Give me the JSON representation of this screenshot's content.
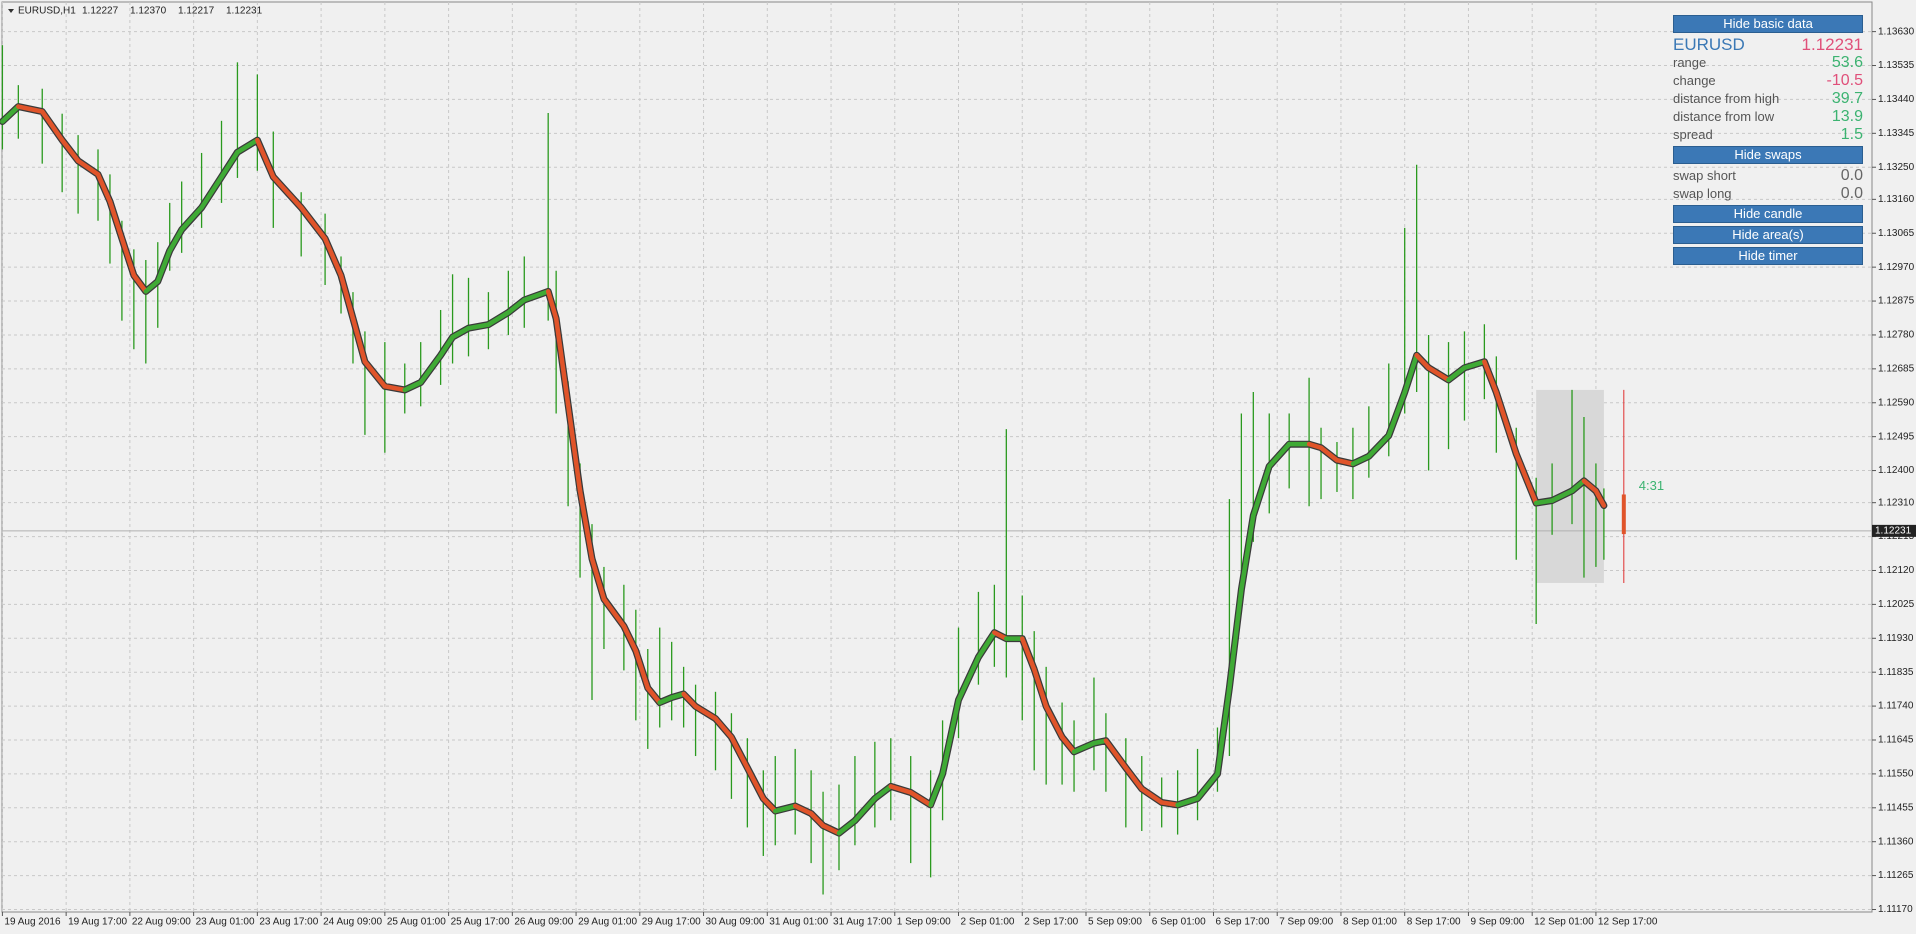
{
  "chart_data": {
    "type": "ohlc",
    "title": "EURUSD,H1",
    "header_values": [
      "1.12227",
      "1.12370",
      "1.12217",
      "1.12231"
    ],
    "x": [
      0,
      4,
      10,
      15,
      19,
      24,
      27,
      30,
      33,
      36,
      39,
      42,
      45,
      50,
      55,
      59,
      64,
      68,
      75,
      81,
      85,
      88,
      91,
      96,
      101,
      105,
      110,
      113,
      117,
      122,
      127,
      131,
      137,
      139,
      142,
      145,
      148,
      151,
      156,
      159,
      162,
      165,
      168,
      171,
      174,
      179,
      183,
      187,
      191,
      194,
      199,
      203,
      206,
      210,
      214,
      219,
      223,
      228,
      233,
      236,
      240,
      245,
      249,
      252,
      256,
      259,
      262,
      266,
      269,
      274,
      277,
      282,
      286,
      291,
      295,
      300,
      305,
      308,
      311,
      314,
      318,
      323,
      328,
      331,
      335,
      339,
      343,
      348,
      352,
      355,
      358,
      363,
      367,
      372,
      375,
      380,
      385,
      389,
      394,
      397,
      400,
      402
    ],
    "ma": [
      1.13378,
      1.1342,
      1.13406,
      1.13326,
      1.13268,
      1.1323,
      1.13154,
      1.1305,
      1.12947,
      1.12902,
      1.1293,
      1.13016,
      1.13075,
      1.13137,
      1.13223,
      1.13292,
      1.13326,
      1.13223,
      1.13137,
      1.1305,
      1.12947,
      1.12826,
      1.12705,
      1.12636,
      1.12626,
      1.12647,
      1.12723,
      1.12774,
      1.12799,
      1.12809,
      1.12843,
      1.12878,
      1.12902,
      1.12826,
      1.12585,
      1.12343,
      1.12153,
      1.1204,
      1.11964,
      1.11895,
      1.11791,
      1.1175,
      1.11764,
      1.11774,
      1.11739,
      1.11705,
      1.11653,
      1.11567,
      1.11481,
      1.11446,
      1.1146,
      1.11439,
      1.11405,
      1.11384,
      1.11419,
      1.11481,
      1.11515,
      1.11498,
      1.11463,
      1.1155,
      1.11757,
      1.11877,
      1.11946,
      1.11929,
      1.11929,
      1.11843,
      1.11739,
      1.11653,
      1.11612,
      1.11636,
      1.11643,
      1.11567,
      1.11508,
      1.1147,
      1.11463,
      1.11481,
      1.1155,
      1.11791,
      1.12067,
      1.12274,
      1.12412,
      1.12474,
      1.12474,
      1.12464,
      1.12429,
      1.12419,
      1.1244,
      1.12498,
      1.12619,
      1.12723,
      1.12688,
      1.12654,
      1.12688,
      1.12705,
      1.12619,
      1.12447,
      1.12309,
      1.12316,
      1.12343,
      1.12371,
      1.12343,
      1.12302
    ],
    "high": [
      1.13592,
      1.1348,
      1.1347,
      1.134,
      1.1334,
      1.133,
      1.1323,
      1.131,
      1.1302,
      1.1299,
      1.1304,
      1.1315,
      1.1321,
      1.1329,
      1.1338,
      1.13544,
      1.1351,
      1.1335,
      1.1318,
      1.1312,
      1.13,
      1.129,
      1.1279,
      1.1276,
      1.127,
      1.1276,
      1.1285,
      1.1295,
      1.1294,
      1.129,
      1.1296,
      1.13,
      1.13402,
      1.1296,
      1.1265,
      1.1242,
      1.1225,
      1.1213,
      1.1208,
      1.1201,
      1.119,
      1.1196,
      1.1192,
      1.1185,
      1.118,
      1.1178,
      1.1172,
      1.1165,
      1.1156,
      1.116,
      1.1162,
      1.1156,
      1.115,
      1.1152,
      1.116,
      1.1164,
      1.1165,
      1.116,
      1.1156,
      1.117,
      1.1196,
      1.1206,
      1.1208,
      1.12516,
      1.1205,
      1.1195,
      1.1185,
      1.1175,
      1.117,
      1.1182,
      1.1172,
      1.1165,
      1.116,
      1.1154,
      1.1156,
      1.1162,
      1.1168,
      1.1232,
      1.1256,
      1.1262,
      1.1256,
      1.1256,
      1.1266,
      1.1252,
      1.1248,
      1.1252,
      1.1258,
      1.127,
      1.1308,
      1.13257,
      1.1278,
      1.1276,
      1.1279,
      1.1281,
      1.1272,
      1.1252,
      1.1238,
      1.1242,
      1.12626,
      1.1255,
      1.1242,
      1.1235
    ],
    "low": [
      1.133,
      1.1333,
      1.1326,
      1.1318,
      1.1312,
      1.131,
      1.1298,
      1.1282,
      1.1274,
      1.127,
      1.128,
      1.1296,
      1.1301,
      1.1308,
      1.1315,
      1.1322,
      1.1324,
      1.1308,
      1.13,
      1.1292,
      1.1284,
      1.127,
      1.125,
      1.1245,
      1.1256,
      1.1258,
      1.1264,
      1.127,
      1.1272,
      1.1274,
      1.1278,
      1.128,
      1.1282,
      1.1256,
      1.123,
      1.121,
      1.11757,
      1.119,
      1.1184,
      1.117,
      1.1162,
      1.1168,
      1.117,
      1.1168,
      1.116,
      1.1156,
      1.1148,
      1.114,
      1.1132,
      1.1135,
      1.1138,
      1.113,
      1.11212,
      1.1128,
      1.1135,
      1.114,
      1.1142,
      1.113,
      1.1126,
      1.1142,
      1.1165,
      1.118,
      1.1185,
      1.1182,
      1.117,
      1.1156,
      1.1152,
      1.1152,
      1.115,
      1.1156,
      1.115,
      1.114,
      1.1139,
      1.114,
      1.1138,
      1.1142,
      1.115,
      1.116,
      1.12,
      1.122,
      1.1228,
      1.1235,
      1.123,
      1.1232,
      1.1234,
      1.1232,
      1.1238,
      1.1244,
      1.1256,
      1.1262,
      1.124,
      1.1246,
      1.1254,
      1.126,
      1.1245,
      1.1215,
      1.1197,
      1.1222,
      1.1225,
      1.121,
      1.1213,
      1.1215
    ],
    "bar_color": "#2a9a1e",
    "rise_color": "#3faa35",
    "fall_color": "#e0542a",
    "grid": true,
    "xlim": [
      -0.1,
      469.3
    ],
    "ylim": [
      1.11163,
      1.13713
    ],
    "xticks": [
      {
        "value": 0,
        "label": "19 Aug 2016"
      },
      {
        "value": 16,
        "label": "19 Aug 17:00"
      },
      {
        "value": 32,
        "label": "22 Aug 09:00"
      },
      {
        "value": 48,
        "label": "23 Aug 01:00"
      },
      {
        "value": 64,
        "label": "23 Aug 17:00"
      },
      {
        "value": 80,
        "label": "24 Aug 09:00"
      },
      {
        "value": 96,
        "label": "25 Aug 01:00"
      },
      {
        "value": 112,
        "label": "25 Aug 17:00"
      },
      {
        "value": 128,
        "label": "26 Aug 09:00"
      },
      {
        "value": 144,
        "label": "29 Aug 01:00"
      },
      {
        "value": 160,
        "label": "29 Aug 17:00"
      },
      {
        "value": 176,
        "label": "30 Aug 09:00"
      },
      {
        "value": 192,
        "label": "31 Aug 01:00"
      },
      {
        "value": 208,
        "label": "31 Aug 17:00"
      },
      {
        "value": 224,
        "label": "1 Sep 09:00"
      },
      {
        "value": 240,
        "label": "2 Sep 01:00"
      },
      {
        "value": 256,
        "label": "2 Sep 17:00"
      },
      {
        "value": 272,
        "label": "5 Sep 09:00"
      },
      {
        "value": 288,
        "label": "6 Sep 01:00"
      },
      {
        "value": 304,
        "label": "6 Sep 17:00"
      },
      {
        "value": 320,
        "label": "7 Sep 09:00"
      },
      {
        "value": 336,
        "label": "8 Sep 01:00"
      },
      {
        "value": 352,
        "label": "8 Sep 17:00"
      },
      {
        "value": 368,
        "label": "9 Sep 09:00"
      },
      {
        "value": 384,
        "label": "12 Sep 01:00"
      },
      {
        "value": 400,
        "label": "12 Sep 17:00"
      }
    ],
    "yticks": [
      {
        "value": 1.1363,
        "label": "1.13630"
      },
      {
        "value": 1.13535,
        "label": "1.13535"
      },
      {
        "value": 1.1344,
        "label": "1.13440"
      },
      {
        "value": 1.13345,
        "label": "1.13345"
      },
      {
        "value": 1.1325,
        "label": "1.13250"
      },
      {
        "value": 1.1316,
        "label": "1.13160"
      },
      {
        "value": 1.13065,
        "label": "1.13065"
      },
      {
        "value": 1.1297,
        "label": "1.12970"
      },
      {
        "value": 1.12875,
        "label": "1.12875"
      },
      {
        "value": 1.1278,
        "label": "1.12780"
      },
      {
        "value": 1.12685,
        "label": "1.12685"
      },
      {
        "value": 1.1259,
        "label": "1.12590"
      },
      {
        "value": 1.12495,
        "label": "1.12495"
      },
      {
        "value": 1.124,
        "label": "1.12400"
      },
      {
        "value": 1.1231,
        "label": "1.12310"
      },
      {
        "value": 1.12215,
        "label": "1.12215"
      },
      {
        "value": 1.1212,
        "label": "1.12120"
      },
      {
        "value": 1.12025,
        "label": "1.12025"
      },
      {
        "value": 1.1193,
        "label": "1.11930"
      },
      {
        "value": 1.11835,
        "label": "1.11835"
      },
      {
        "value": 1.1174,
        "label": "1.11740"
      },
      {
        "value": 1.11645,
        "label": "1.11645"
      },
      {
        "value": 1.1155,
        "label": "1.11550"
      },
      {
        "value": 1.11455,
        "label": "1.11455"
      },
      {
        "value": 1.1136,
        "label": "1.11360"
      },
      {
        "value": 1.11265,
        "label": "1.11265"
      },
      {
        "value": 1.1117,
        "label": "1.11170"
      }
    ],
    "area": {
      "x": [
        385,
        402
      ],
      "y": [
        1.12085,
        1.12626
      ]
    },
    "marker": {
      "x": 407,
      "high": 1.12626,
      "low": 1.12085,
      "open": 1.12333,
      "close": 1.12222
    },
    "timer": "4:31",
    "price_line": {
      "value": 1.12231,
      "label": "1.12231"
    }
  },
  "panel": {
    "buttons": [
      "Hide basic data",
      "Hide swaps",
      "Hide candle",
      "Hide area(s)",
      "Hide timer"
    ],
    "symbol": "EURUSD",
    "price": "1.12231",
    "rows": [
      {
        "label": "range",
        "value": "53.6"
      },
      {
        "label": "change",
        "value": "-10.5"
      },
      {
        "label": "distance from high",
        "value": "39.7"
      },
      {
        "label": "distance from low",
        "value": "13.9"
      },
      {
        "label": "spread",
        "value": "1.5"
      }
    ],
    "swaps": [
      {
        "label": "swap short",
        "value": "0.0"
      },
      {
        "label": "swap long",
        "value": "0.0"
      }
    ]
  }
}
